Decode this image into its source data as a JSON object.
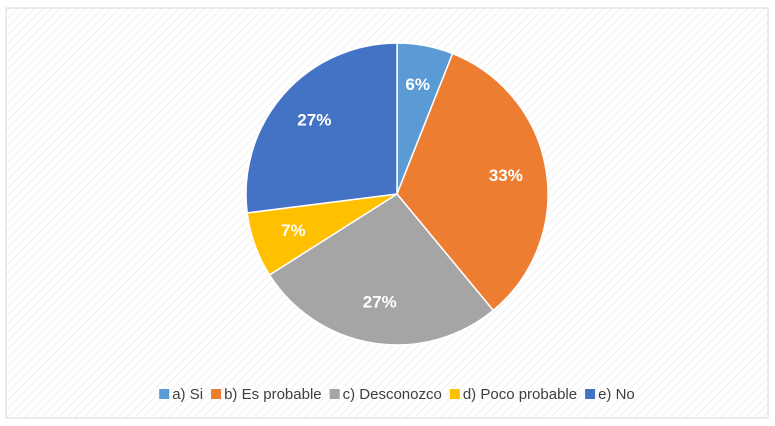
{
  "chart_data": {
    "type": "pie",
    "categories": [
      "a) Si",
      "b) Es probable",
      "c) Desconozco",
      "d) Poco probable",
      "e) No"
    ],
    "values": [
      6,
      33,
      27,
      7,
      27
    ],
    "value_labels": [
      "6%",
      "33%",
      "27%",
      "7%",
      "27%"
    ],
    "colors": [
      "#5b9bd5",
      "#ed7d31",
      "#a5a5a5",
      "#ffc000",
      "#4472c4"
    ],
    "legend": "bottom"
  }
}
